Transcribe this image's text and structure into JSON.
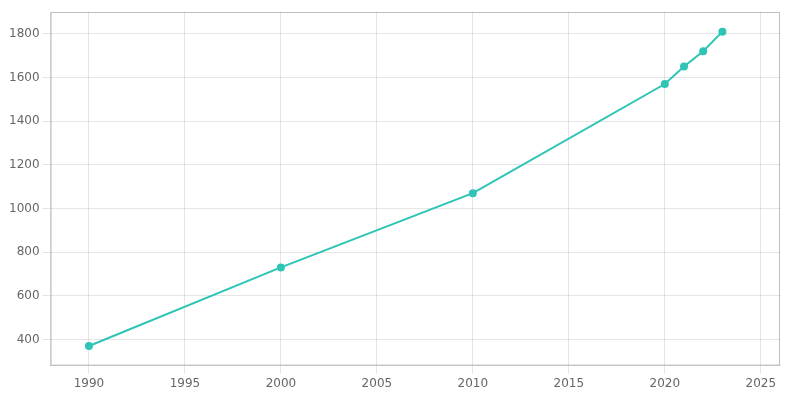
{
  "chart_data": {
    "type": "line",
    "x": [
      1990,
      2000,
      2010,
      2020,
      2021,
      2022,
      2023
    ],
    "values": [
      370,
      730,
      1070,
      1570,
      1650,
      1720,
      1810
    ],
    "color": "#2ec4b6",
    "marker": "circle",
    "xlim": [
      1988,
      2026
    ],
    "ylim": [
      280,
      1900
    ],
    "xticks": [
      1990,
      1995,
      2000,
      2005,
      2010,
      2015,
      2020,
      2025
    ],
    "yticks": [
      400,
      600,
      800,
      1000,
      1200,
      1400,
      1600,
      1800
    ],
    "grid": true
  }
}
